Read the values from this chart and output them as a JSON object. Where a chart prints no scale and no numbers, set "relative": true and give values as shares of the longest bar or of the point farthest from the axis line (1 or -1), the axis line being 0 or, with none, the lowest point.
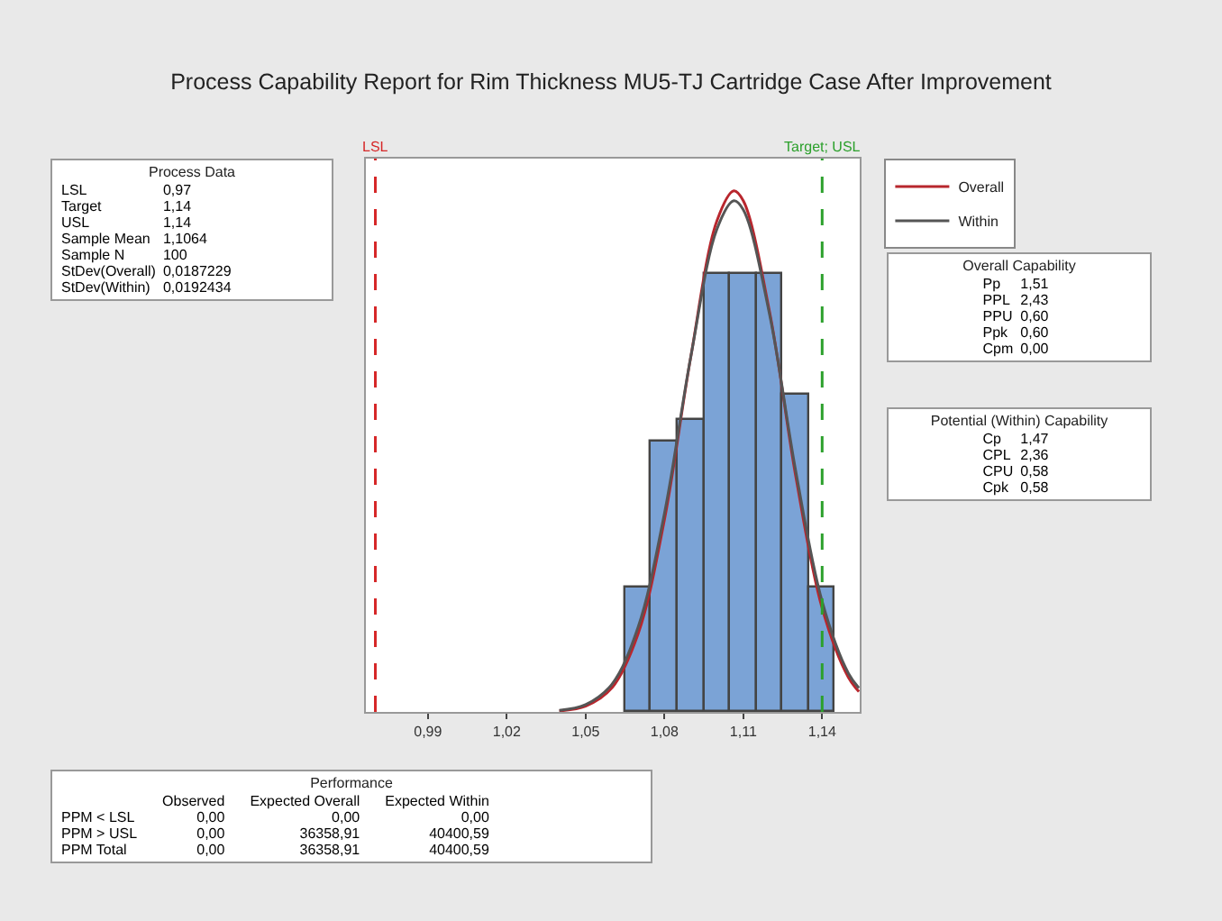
{
  "chart_data": {
    "type": "histogram",
    "title": "Process Capability Report for Rim Thickness MU5-TJ Cartridge Case After Improvement",
    "relative": true,
    "bins": [
      1.065,
      1.075,
      1.085,
      1.095,
      1.105,
      1.115,
      1.125,
      1.135,
      1.145
    ],
    "values": [
      0.24,
      0.52,
      0.56,
      0.84,
      0.84,
      0.84,
      0.61,
      0.24
    ],
    "color": "#7ba3d6",
    "series": [
      {
        "type": "line",
        "name": "Overall",
        "color": "#b8262d",
        "x": [
          1.04,
          1.05,
          1.06,
          1.07,
          1.08,
          1.09,
          1.1,
          1.1064,
          1.11,
          1.12,
          1.13,
          1.14,
          1.15,
          1.154
        ],
        "values": [
          0.002,
          0.011,
          0.046,
          0.15,
          0.369,
          0.681,
          0.943,
          1,
          0.981,
          0.768,
          0.451,
          0.199,
          0.066,
          0.039
        ]
      },
      {
        "type": "line",
        "name": "Within",
        "color": "#555555",
        "x": [
          1.04,
          1.05,
          1.06,
          1.07,
          1.08,
          1.09,
          1.1,
          1.1064,
          1.11,
          1.12,
          1.13,
          1.14,
          1.15,
          1.154
        ],
        "values": [
          0.003,
          0.014,
          0.053,
          0.163,
          0.381,
          0.681,
          0.927,
          0.981,
          0.964,
          0.763,
          0.461,
          0.212,
          0.074,
          0.046
        ]
      }
    ],
    "xlim": [
      0.9664,
      1.1543
    ],
    "xticks": [
      {
        "value": 0.99,
        "label": "0,99"
      },
      {
        "value": 1.02,
        "label": "1,02"
      },
      {
        "value": 1.05,
        "label": "1,05"
      },
      {
        "value": 1.08,
        "label": "1,08"
      },
      {
        "value": 1.11,
        "label": "1,11"
      },
      {
        "value": 1.14,
        "label": "1,14"
      }
    ],
    "ref_lines": [
      {
        "axis": "x",
        "value": 0.97,
        "label": "LSL",
        "color": "#d62728",
        "line_style": "dashed"
      },
      {
        "axis": "x",
        "value": 1.14,
        "label": "Target; USL",
        "color": "#2ca02c",
        "line_style": "dashed"
      }
    ],
    "legend": "top right",
    "grid": false,
    "marker": "none",
    "line_style": "solid",
    "annotations": [
      "Process Data\nLSL\t0,97\nTarget\t1,14\nUSL\t1,14\nSample Mean\t1,1064\nSample N\t100\nStDev(Overall)\t0,0187229\nStDev(Within)\t0,0192434",
      "Overall Capability\nPp\t1,51\nPPL\t2,43\nPPU\t0,60\nPpk\t0,60\nCpm\t0,00",
      "Potential (Within) Capability\nCp\t1,47\nCPL\t2,36\nCPU\t0,58\nCpk\t0,58",
      "Performance\n\tObserved\tExpected Overall\tExpected Within\nPPM < LSL\t0,00\t0,00\t0,00\nPPM > USL\t0,00\t36358,91\t40400,59\nPPM Total\t0,00\t36358,91\t40400,59"
    ]
  }
}
